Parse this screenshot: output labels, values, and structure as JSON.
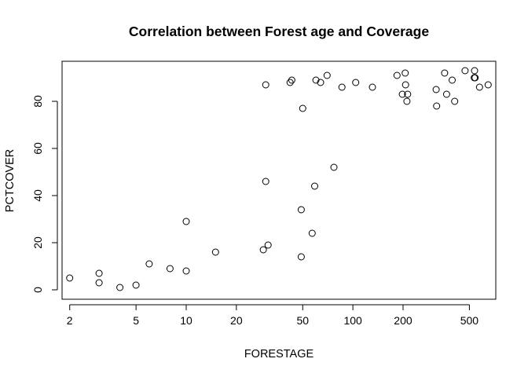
{
  "chart_data": {
    "type": "scatter",
    "title": "Correlation between Forest age and Coverage",
    "xlabel": "FORESTAGE",
    "ylabel": "PCTCOVER",
    "x_scale": "log",
    "xlim": [
      1.8,
      720
    ],
    "ylim": [
      -4,
      97
    ],
    "x_ticks": [
      2,
      5,
      10,
      20,
      50,
      100,
      200,
      500
    ],
    "y_ticks": [
      0,
      20,
      40,
      60,
      80
    ],
    "grid": false,
    "points": [
      {
        "x": 2,
        "y": 5
      },
      {
        "x": 3,
        "y": 7
      },
      {
        "x": 3,
        "y": 3
      },
      {
        "x": 4,
        "y": 1
      },
      {
        "x": 5,
        "y": 2
      },
      {
        "x": 6,
        "y": 11
      },
      {
        "x": 8,
        "y": 9
      },
      {
        "x": 10,
        "y": 8
      },
      {
        "x": 10,
        "y": 29
      },
      {
        "x": 15,
        "y": 16
      },
      {
        "x": 29,
        "y": 17
      },
      {
        "x": 30,
        "y": 46
      },
      {
        "x": 30,
        "y": 87
      },
      {
        "x": 31,
        "y": 19
      },
      {
        "x": 42,
        "y": 88
      },
      {
        "x": 43,
        "y": 89
      },
      {
        "x": 49,
        "y": 34
      },
      {
        "x": 49,
        "y": 14
      },
      {
        "x": 50,
        "y": 77
      },
      {
        "x": 57,
        "y": 24
      },
      {
        "x": 59,
        "y": 44
      },
      {
        "x": 60,
        "y": 89
      },
      {
        "x": 64,
        "y": 88
      },
      {
        "x": 70,
        "y": 91
      },
      {
        "x": 77,
        "y": 52
      },
      {
        "x": 86,
        "y": 86
      },
      {
        "x": 104,
        "y": 88
      },
      {
        "x": 131,
        "y": 86
      },
      {
        "x": 184,
        "y": 91
      },
      {
        "x": 198,
        "y": 83
      },
      {
        "x": 206,
        "y": 92
      },
      {
        "x": 207,
        "y": 87
      },
      {
        "x": 211,
        "y": 80
      },
      {
        "x": 213,
        "y": 83
      },
      {
        "x": 316,
        "y": 85
      },
      {
        "x": 318,
        "y": 78
      },
      {
        "x": 355,
        "y": 92
      },
      {
        "x": 365,
        "y": 83
      },
      {
        "x": 394,
        "y": 89
      },
      {
        "x": 408,
        "y": 80
      },
      {
        "x": 471,
        "y": 93
      },
      {
        "x": 535,
        "y": 90
      },
      {
        "x": 537,
        "y": 93
      },
      {
        "x": 541,
        "y": 90
      },
      {
        "x": 575,
        "y": 86
      },
      {
        "x": 648,
        "y": 87
      }
    ]
  }
}
